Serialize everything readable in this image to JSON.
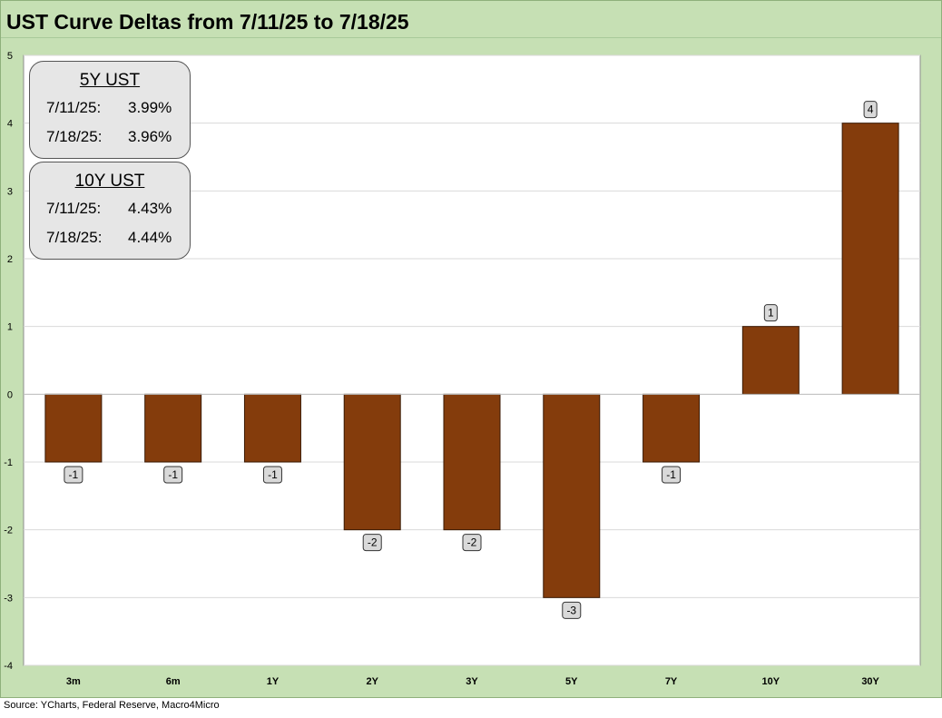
{
  "title": "UST Curve Deltas from 7/11/25 to 7/18/25",
  "source": "Source: YCharts, Federal Reserve, Macro4Micro",
  "colors": {
    "background": "#c6e0b4",
    "plot": "#ffffff",
    "bar": "#843c0c",
    "label_box": "#d9d9d9"
  },
  "info_boxes": [
    {
      "heading": "5Y UST",
      "rows": [
        {
          "date": "7/11/25:",
          "value": "3.99%"
        },
        {
          "date": "7/18/25:",
          "value": "3.96%"
        }
      ]
    },
    {
      "heading": "10Y UST",
      "rows": [
        {
          "date": "7/11/25:",
          "value": "4.43%"
        },
        {
          "date": "7/18/25:",
          "value": "4.44%"
        }
      ]
    }
  ],
  "chart_data": {
    "type": "bar",
    "title": "UST Curve Deltas from 7/11/25 to 7/18/25",
    "categories": [
      "3m",
      "6m",
      "1Y",
      "2Y",
      "3Y",
      "5Y",
      "7Y",
      "10Y",
      "30Y"
    ],
    "values": [
      -1,
      -1,
      -1,
      -2,
      -2,
      -3,
      -1,
      1,
      4
    ],
    "data_labels": [
      "-1",
      "-1",
      "-1",
      "-2",
      "-2",
      "-3",
      "-1",
      "1",
      "4"
    ],
    "xlabel": "",
    "ylabel": "",
    "ylim": [
      -4,
      5
    ],
    "yticks": [
      5,
      4,
      3,
      2,
      1,
      0,
      -1,
      -2,
      -3,
      -4
    ],
    "ytick_labels": [
      "5",
      "4",
      "3",
      "2",
      "1",
      "0",
      "-1",
      "-2",
      "-3",
      "-4"
    ],
    "grid": true,
    "legend": "none"
  }
}
